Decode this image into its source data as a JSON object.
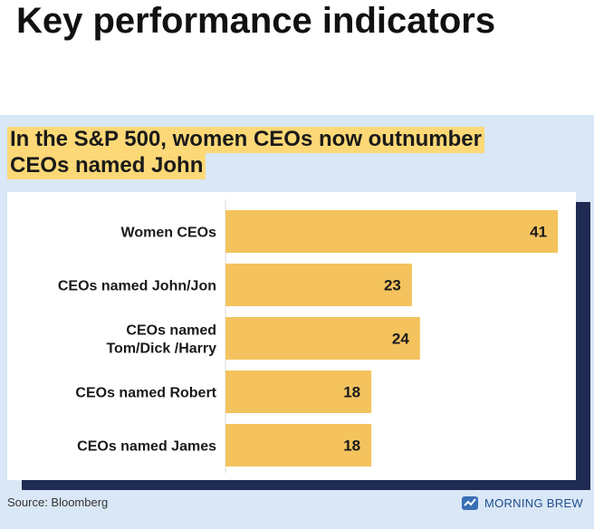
{
  "page": {
    "heading": "Key performance indicators"
  },
  "headline": {
    "line1": "In the S&P 500, women CEOs now outnumber",
    "line2": "CEOs named John"
  },
  "source": "Source: Bloomberg",
  "brand": {
    "name": "MORNING BREW",
    "icon": "morning-brew-logo-icon"
  },
  "colors": {
    "bar": "#f4c35e",
    "highlight": "#fcd877",
    "card_bg": "#d9e7f6",
    "shadow": "#1f2b52"
  },
  "chart_data": {
    "type": "bar",
    "orientation": "horizontal",
    "title": "In the S&P 500, women CEOs now outnumber CEOs named John",
    "categories": [
      [
        "Women CEOs"
      ],
      [
        "CEOs named John/Jon"
      ],
      [
        "CEOs named",
        "Tom/Dick /Harry"
      ],
      [
        "CEOs named Robert"
      ],
      [
        "CEOs named James"
      ]
    ],
    "values": [
      41,
      23,
      24,
      18,
      18
    ],
    "data_labels": [
      "41",
      "23",
      "24",
      "18",
      "18"
    ],
    "xlim": [
      0,
      42
    ],
    "grid": false,
    "legend": "none"
  }
}
